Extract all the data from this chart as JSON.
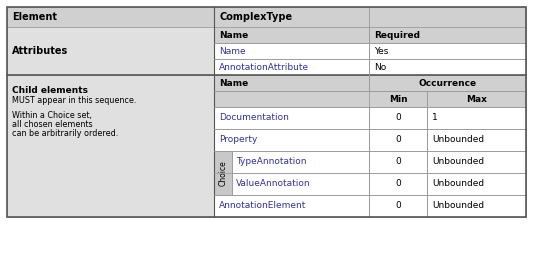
{
  "bg_light": "#e0e0e0",
  "bg_header": "#d0d0d0",
  "bg_white": "#ffffff",
  "bg_choice": "#c8c8c8",
  "border_outer": "#555555",
  "border_inner": "#999999",
  "text_black": "#000000",
  "text_blue": "#333399",
  "col_element": "Element",
  "col_complextype": "ComplexType",
  "attr_label": "Attributes",
  "attr_name_hdr": "Name",
  "attr_req_hdr": "Required",
  "attr_rows": [
    {
      "name": "Name",
      "required": "Yes"
    },
    {
      "name": "AnnotationAttribute",
      "required": "No"
    }
  ],
  "child_label_bold": "Child elements",
  "child_label_line1": "MUST appear in this sequence.",
  "child_label_line2": "",
  "child_label_line3": "Within a Choice set,",
  "child_label_line4": "all chosen elements",
  "child_label_line5": "can be arbitrarily ordered.",
  "child_name_hdr": "Name",
  "child_occ_hdr": "Occurrence",
  "child_min_hdr": "Min",
  "child_max_hdr": "Max",
  "child_rows": [
    {
      "name": "Documentation",
      "choice": false,
      "min": "0",
      "max": "1"
    },
    {
      "name": "Property",
      "choice": false,
      "min": "0",
      "max": "Unbounded"
    },
    {
      "name": "TypeAnnotation",
      "choice": true,
      "min": "0",
      "max": "Unbounded"
    },
    {
      "name": "ValueAnnotation",
      "choice": true,
      "min": "0",
      "max": "Unbounded"
    },
    {
      "name": "AnnotationElement",
      "choice": false,
      "min": "0",
      "max": "Unbounded"
    }
  ],
  "fig_w": 5.33,
  "fig_h": 2.74,
  "dpi": 100
}
